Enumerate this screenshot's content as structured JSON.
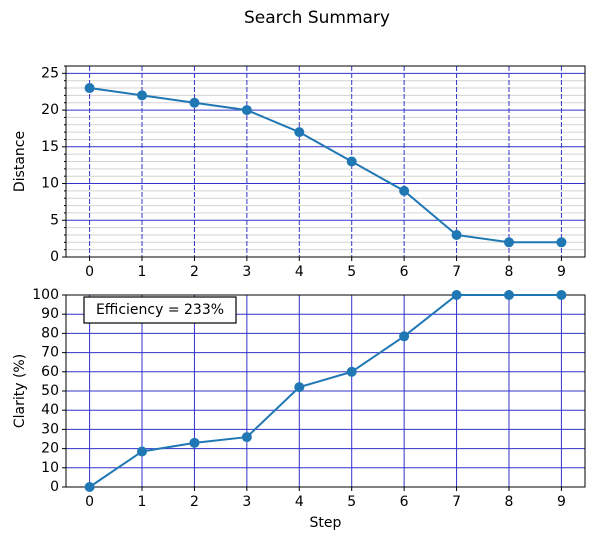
{
  "title": "Search Summary",
  "chart_data": [
    {
      "type": "line",
      "ylabel": "Distance",
      "x": [
        0,
        1,
        2,
        3,
        4,
        5,
        6,
        7,
        8,
        9
      ],
      "series": [
        {
          "color": "#1f77b4",
          "values": [
            23,
            22,
            21,
            20,
            17,
            13,
            9,
            3,
            2,
            2
          ]
        }
      ],
      "xlim": [
        -0.45,
        9.45
      ],
      "xticks": [
        0,
        1,
        2,
        3,
        4,
        5,
        6,
        7,
        8,
        9
      ],
      "ylim": [
        0,
        26
      ],
      "yticks": [
        0,
        5,
        10,
        15,
        20,
        25
      ],
      "minor_yticks": [
        1,
        2,
        3,
        4,
        6,
        7,
        8,
        9,
        11,
        12,
        13,
        14,
        16,
        17,
        18,
        19,
        21,
        22,
        23,
        24,
        26
      ],
      "grid": true,
      "grid_color": "#3333cc",
      "xgrid_style": "dashed"
    },
    {
      "type": "line",
      "ylabel": "Clarity (%)",
      "xlabel": "Step",
      "annotation": "Efficiency = 233%",
      "x": [
        0,
        1,
        2,
        3,
        4,
        5,
        6,
        7,
        8,
        9
      ],
      "series": [
        {
          "color": "#1f77b4",
          "values": [
            0,
            18.5,
            23,
            26,
            52,
            60,
            78.5,
            100,
            100,
            100
          ]
        }
      ],
      "xlim": [
        -0.45,
        9.45
      ],
      "xticks": [
        0,
        1,
        2,
        3,
        4,
        5,
        6,
        7,
        8,
        9
      ],
      "ylim": [
        0,
        100
      ],
      "yticks": [
        0,
        10,
        20,
        30,
        40,
        50,
        60,
        70,
        80,
        90,
        100
      ],
      "grid": true,
      "grid_color": "#3333cc",
      "xgrid_style": "solid"
    }
  ]
}
